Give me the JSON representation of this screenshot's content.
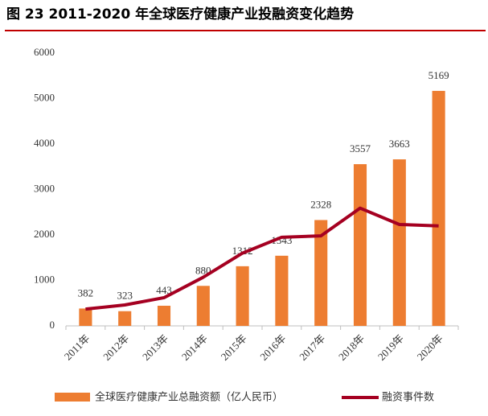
{
  "chart_data": {
    "type": "bar",
    "title": "图 23 2011-2020 年全球医疗健康产业投融资变化趋势",
    "categories": [
      "2011年",
      "2012年",
      "2013年",
      "2014年",
      "2015年",
      "2016年",
      "2017年",
      "2018年",
      "2019年",
      "2020年"
    ],
    "series": [
      {
        "name": "全球医疗健康产业总融资额（亿人民币）",
        "type": "bar",
        "color": "#ed7d31",
        "values": [
          382,
          323,
          443,
          880,
          1312,
          1543,
          2328,
          3557,
          3663,
          5169
        ]
      },
      {
        "name": "融资事件数",
        "type": "line",
        "color": "#a50021",
        "values": [
          370,
          460,
          620,
          1070,
          1600,
          1950,
          1980,
          2590,
          2230,
          2200
        ]
      }
    ],
    "ylim": [
      0,
      6000
    ],
    "yticks": [
      0,
      1000,
      2000,
      3000,
      4000,
      5000,
      6000
    ],
    "grid": false
  }
}
